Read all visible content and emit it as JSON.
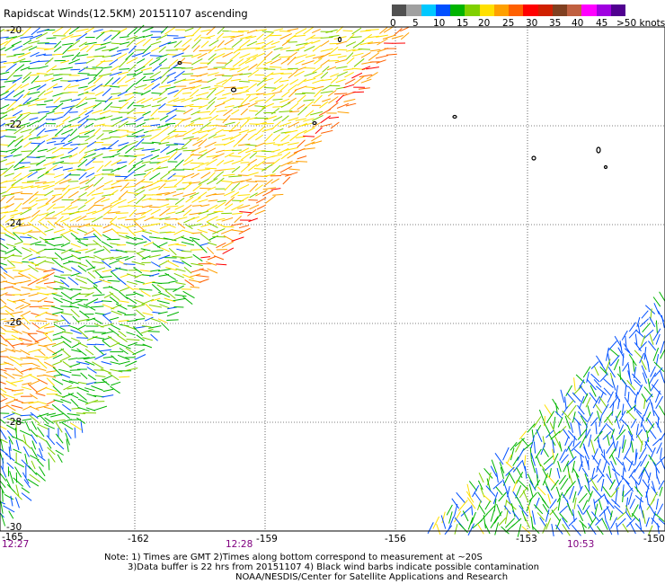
{
  "title": "Rapidscat Winds(12.5KM) 20151107 ascending",
  "colorbar": {
    "labels": [
      "0",
      "5",
      "10",
      "15",
      "20",
      "25",
      "30",
      "35",
      "40",
      "45",
      ">50 knots"
    ],
    "colors": [
      "#505050",
      "#a0a0a0",
      "#00c8ff",
      "#0050ff",
      "#00b400",
      "#80d000",
      "#ffe000",
      "#ffa000",
      "#ff6000",
      "#ff0000",
      "#d02000",
      "#804020",
      "#c06040",
      "#ff00ff",
      "#a000e0",
      "#500090"
    ]
  },
  "map": {
    "lon_ticks": [
      "-165",
      "-162",
      "-159",
      "-156",
      "-153",
      "-150"
    ],
    "lat_ticks": [
      "-20",
      "-22",
      "-24",
      "-26",
      "-28",
      "-30"
    ],
    "time_labels": [
      "12:27",
      "12:28",
      "10:53"
    ]
  },
  "notes": {
    "line1": "Note: 1) Times are GMT 2)Times along bottom correspond to measurement at ~20S",
    "line2": "3)Data buffer is 22 hrs from 20151107 4) Black wind barbs indicate possible contamination",
    "line3": "NOAA/NESDIS/Center for Satellite Applications and Research"
  }
}
